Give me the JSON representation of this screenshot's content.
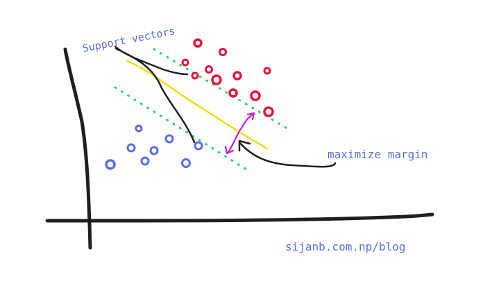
{
  "annotations": {
    "support_vectors": "Support vectors",
    "maximize_margin": "maximize margin",
    "credit": "sijanb.com.np/blog"
  },
  "colors": {
    "positive_class": "#e8123a",
    "negative_class": "#5b6ee1",
    "margin_lines": "#1fd660",
    "decision_boundary": "#f2dc08",
    "margin_arrow": "#c81ad6",
    "ink": "#1f1f1f",
    "text": "#5b6ee1"
  }
}
